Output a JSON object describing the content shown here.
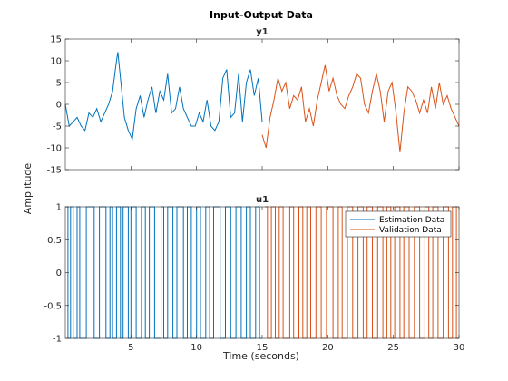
{
  "chart_data": {
    "type": "line",
    "title": "Input-Output Data",
    "xlabel": "Time (seconds)",
    "ylabel": "Amplitude",
    "xlim": [
      0,
      30
    ],
    "x_ticks": [
      5,
      10,
      15,
      20,
      25,
      30
    ],
    "grid": false,
    "legend": {
      "placement": "top-right of lower panel",
      "entries": [
        "Estimation Data",
        "Validation Data"
      ]
    },
    "colors": {
      "estimation": "#0072BD",
      "validation": "#D95319"
    },
    "panels": [
      {
        "title": "y1",
        "ylim": [
          -15,
          15
        ],
        "y_ticks": [
          -15,
          -10,
          -5,
          0,
          5,
          10,
          15
        ],
        "series": [
          {
            "name": "Estimation Data",
            "x": [
              0.0,
              0.3,
              0.6,
              0.9,
              1.2,
              1.5,
              1.8,
              2.1,
              2.4,
              2.7,
              3.0,
              3.3,
              3.6,
              3.9,
              4.0,
              4.2,
              4.5,
              4.8,
              5.1,
              5.4,
              5.7,
              6.0,
              6.3,
              6.6,
              6.9,
              7.2,
              7.5,
              7.8,
              8.1,
              8.4,
              8.7,
              9.0,
              9.3,
              9.6,
              9.9,
              10.2,
              10.5,
              10.8,
              11.1,
              11.4,
              11.7,
              12.0,
              12.3,
              12.6,
              12.9,
              13.2,
              13.5,
              13.8,
              14.1,
              14.4,
              14.7,
              15.0
            ],
            "y": [
              0,
              -5,
              -4,
              -3,
              -5,
              -6,
              -2,
              -3,
              -1,
              -4,
              -2,
              0,
              3,
              10,
              12,
              6,
              -3,
              -6,
              -8,
              -1,
              2,
              -3,
              1,
              4,
              -2,
              3,
              1,
              7,
              -2,
              -1,
              4,
              -1,
              -3,
              -5,
              -5,
              -2,
              -4,
              1,
              -5,
              -6,
              -4,
              6,
              8,
              -3,
              -2,
              7,
              -4,
              5,
              8,
              2,
              6,
              -4
            ]
          },
          {
            "name": "Validation Data",
            "x": [
              15.0,
              15.3,
              15.6,
              15.9,
              16.2,
              16.5,
              16.8,
              17.1,
              17.4,
              17.7,
              18.0,
              18.3,
              18.6,
              18.9,
              19.2,
              19.5,
              19.8,
              20.1,
              20.4,
              20.7,
              21.0,
              21.3,
              21.6,
              21.9,
              22.2,
              22.5,
              22.8,
              23.1,
              23.4,
              23.7,
              24.0,
              24.3,
              24.6,
              24.9,
              25.2,
              25.5,
              25.8,
              26.1,
              26.4,
              26.7,
              27.0,
              27.3,
              27.6,
              27.9,
              28.2,
              28.5,
              28.8,
              29.1,
              29.4,
              29.7,
              30.0
            ],
            "y": [
              -7,
              -10,
              -3,
              1,
              6,
              3,
              5,
              -1,
              2,
              1,
              4,
              -4,
              -1,
              -5,
              1,
              5,
              9,
              3,
              6,
              2,
              0,
              -1,
              2,
              4,
              7,
              6,
              0,
              -2,
              3,
              7,
              3,
              -4,
              3,
              5,
              -2,
              -11,
              -2,
              4,
              3,
              1,
              -2,
              1,
              -2,
              4,
              -1,
              5,
              0,
              2,
              -1,
              -3,
              -5
            ]
          }
        ]
      },
      {
        "title": "u1",
        "ylim": [
          -1,
          1
        ],
        "y_ticks": [
          -1,
          -0.5,
          0,
          0.5,
          1
        ],
        "signal": "binary",
        "series": [
          {
            "name": "Estimation Data",
            "switch_times": [
              0.2,
              0.4,
              0.6,
              0.9,
              1.1,
              1.6,
              2.2,
              2.6,
              3.1,
              3.4,
              3.6,
              3.9,
              4.2,
              4.4,
              4.8,
              5.0,
              5.4,
              5.8,
              6.1,
              6.4,
              6.8,
              7.3,
              7.5,
              7.8,
              8.2,
              8.5,
              9.0,
              9.3,
              9.6,
              10.0,
              10.3,
              10.7,
              11.0,
              11.3,
              11.8,
              12.2,
              12.6,
              13.0,
              13.4,
              13.8,
              14.1,
              14.5,
              14.8
            ],
            "initial_level": 1
          },
          {
            "name": "Validation Data",
            "switch_times": [
              15.2,
              15.4,
              15.7,
              16.0,
              16.3,
              16.6,
              17.1,
              17.4,
              17.8,
              18.1,
              18.4,
              18.7,
              19.1,
              19.5,
              19.9,
              20.4,
              20.8,
              21.1,
              21.5,
              21.9,
              22.3,
              22.7,
              23.0,
              23.4,
              23.8,
              24.2,
              24.5,
              24.8,
              25.1,
              25.5,
              25.8,
              26.2,
              26.6,
              27.0,
              27.4,
              27.7,
              28.0,
              28.4,
              28.8,
              29.2,
              29.5,
              29.8
            ],
            "initial_level": 1
          }
        ]
      }
    ]
  }
}
